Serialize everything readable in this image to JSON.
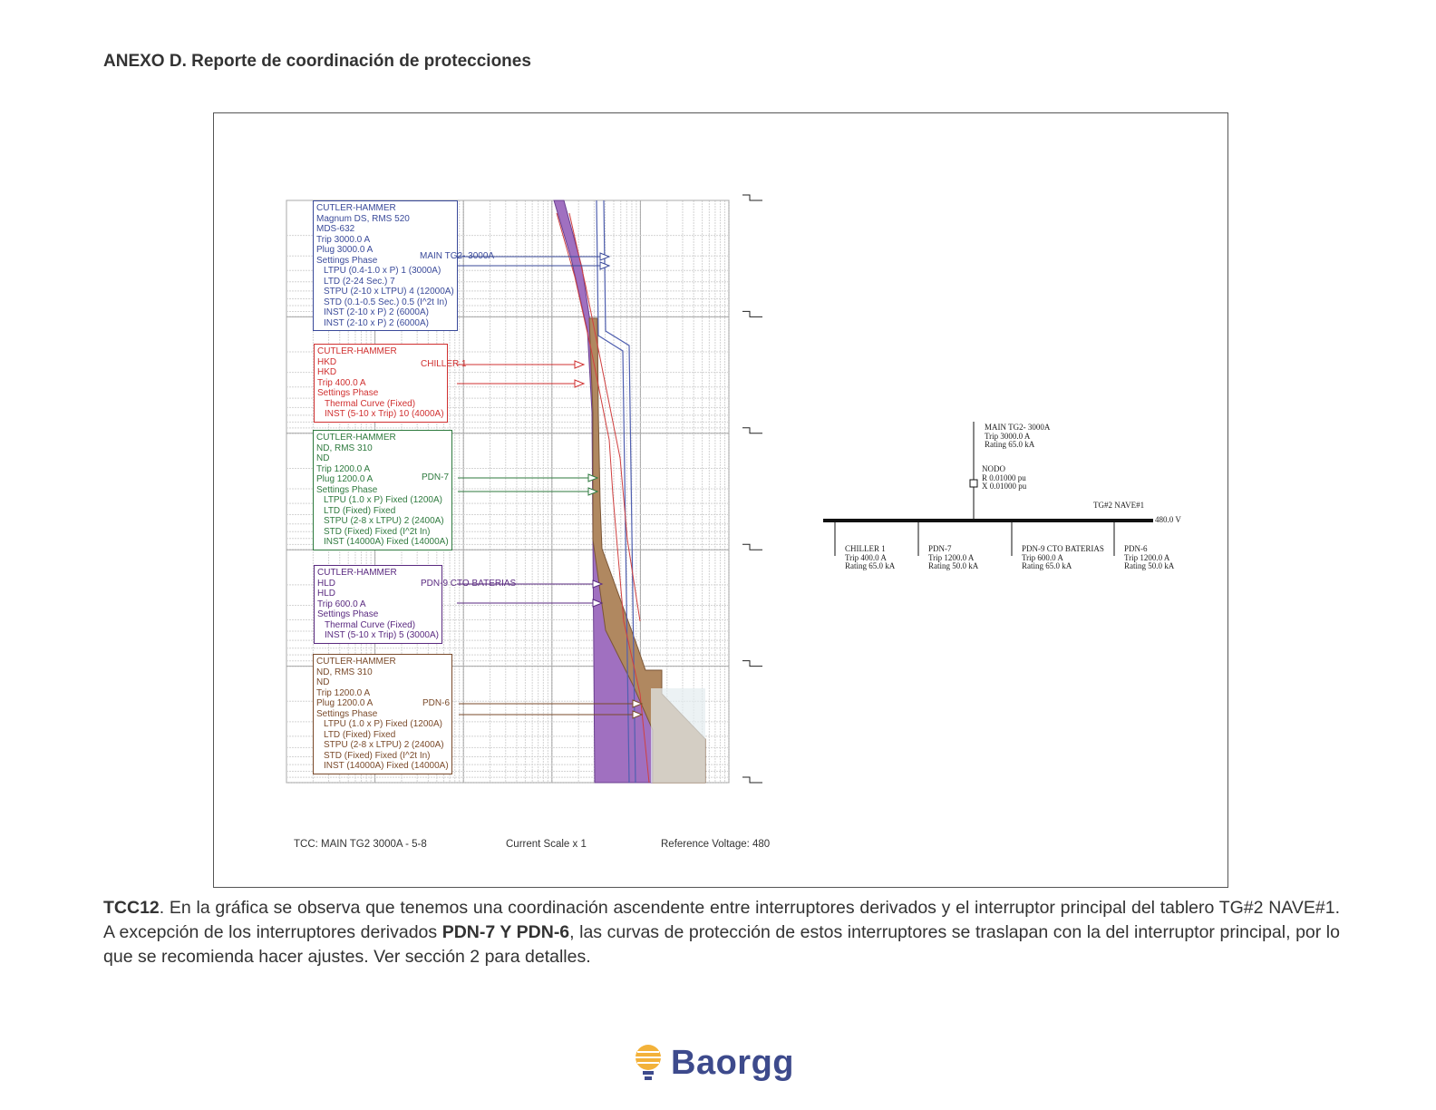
{
  "header": {
    "title": "ANEXO D. Reporte de coordinación de protecciones"
  },
  "figure": {
    "devices": [
      {
        "color": "#3a4a9a",
        "label": "MAIN TG2- 3000A",
        "lines": [
          "CUTLER-HAMMER",
          "Magnum DS, RMS 520",
          "MDS-632",
          "Trip 3000.0 A",
          "Plug 3000.0 A",
          "Settings Phase"
        ],
        "settings": [
          "LTPU (0.4-1.0 x P) 1 (3000A)",
          "LTD (2-24 Sec.) 7",
          "STPU (2-10 x LTPU) 4 (12000A)",
          "STD (0.1-0.5 Sec.) 0.5 (I^2t In)",
          "INST (2-10 x P) 2 (6000A)",
          "INST (2-10 x P) 2 (6000A)"
        ]
      },
      {
        "color": "#d03030",
        "label": "CHILLER 1",
        "lines": [
          "CUTLER-HAMMER",
          "HKD",
          "HKD",
          "Trip 400.0 A",
          "Settings Phase"
        ],
        "settings": [
          "Thermal Curve (Fixed)",
          "INST (5-10 x Trip) 10 (4000A)"
        ]
      },
      {
        "color": "#2e7a3e",
        "label": "PDN-7",
        "lines": [
          "CUTLER-HAMMER",
          "ND, RMS 310",
          "ND",
          "Trip 1200.0 A",
          "Plug 1200.0 A",
          "Settings Phase"
        ],
        "settings": [
          "LTPU (1.0 x P) Fixed (1200A)",
          "LTD (Fixed) Fixed",
          "STPU (2-8 x LTPU) 2 (2400A)",
          "STD (Fixed) Fixed (I^2t In)",
          "INST (14000A) Fixed (14000A)"
        ]
      },
      {
        "color": "#5a2a80",
        "label": "PDN-9 CTO BATERIAS",
        "lines": [
          "CUTLER-HAMMER",
          "HLD",
          "HLD",
          "Trip 600.0 A",
          "Settings Phase"
        ],
        "settings": [
          "Thermal Curve (Fixed)",
          "INST (5-10 x Trip) 5 (3000A)"
        ]
      },
      {
        "color": "#7a4a2a",
        "label": "PDN-6",
        "lines": [
          "CUTLER-HAMMER",
          "ND, RMS 310",
          "ND",
          "Trip 1200.0 A",
          "Plug 1200.0 A",
          "Settings Phase"
        ],
        "settings": [
          "LTPU (1.0 x P) Fixed (1200A)",
          "LTD (Fixed) Fixed",
          "STPU (2-8 x LTPU) 2 (2400A)",
          "STD (Fixed) Fixed (I^2t In)",
          "INST (14000A) Fixed (14000A)"
        ]
      }
    ],
    "one_line": {
      "main": [
        "MAIN TG2- 3000A",
        "Trip 3000.0 A",
        "Rating 65.0 kA"
      ],
      "node": [
        "NODO",
        "R 0.01000 pu",
        "X 0.01000 pu"
      ],
      "bus": "TG#2 NAVE#1",
      "voltage": "480.0 V",
      "branches": [
        [
          "CHILLER 1",
          "Trip 400.0 A",
          "Rating 65.0 kA"
        ],
        [
          "PDN-7",
          "Trip 1200.0 A",
          "Rating 50.0 kA"
        ],
        [
          "PDN-9 CTO BATERIAS",
          "Trip 600.0 A",
          "Rating 65.0 kA"
        ],
        [
          "PDN-6",
          "Trip 1200.0 A",
          "Rating 50.0 kA"
        ]
      ]
    },
    "footer": {
      "tcc": "TCC:  MAIN TG2 3000A - 5-8",
      "scale": "Current Scale  x 1",
      "voltage": "Reference Voltage: 480"
    }
  },
  "paragraph": {
    "lead": "TCC12",
    "text_1": ". En la gráfica se observa que tenemos una coordinación ascendente entre interruptores derivados y el interruptor principal del tablero TG#2 NAVE#1. A excepción de los interruptores derivados ",
    "emphasis": "PDN-7 Y PDN-6",
    "text_2": ", las curvas de protección de estos interruptores se traslapan con la del interruptor principal, por lo que se recomienda hacer ajustes. Ver sección 2 para detalles."
  },
  "logo": {
    "text": "Baorgg"
  }
}
